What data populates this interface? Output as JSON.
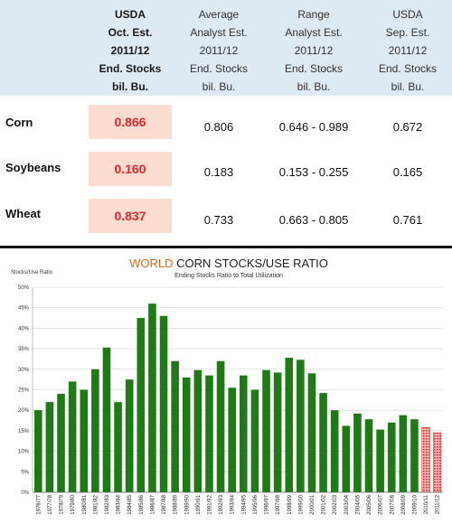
{
  "table": {
    "columns": [
      {
        "lines": [
          "USDA",
          "Oct. Est.",
          "2011/12",
          "End. Stocks",
          "bil. Bu."
        ],
        "bold": true
      },
      {
        "lines": [
          "Average",
          "Analyst Est.",
          "2011/12",
          "End. Stocks",
          "bil. Bu."
        ],
        "bold": false
      },
      {
        "lines": [
          "Range",
          "Analyst Est.",
          "2011/12",
          "End. Stocks",
          "bil. Bu."
        ],
        "bold": false
      },
      {
        "lines": [
          "USDA",
          "Sep. Est.",
          "2011/12",
          "End. Stocks",
          "bil. Bu."
        ],
        "bold": false
      }
    ],
    "rows": [
      {
        "label": "Corn",
        "oct": "0.866",
        "avg": "0.806",
        "range": "0.646 - 0.989",
        "sep": "0.672"
      },
      {
        "label": "Soybeans",
        "oct": "0.160",
        "avg": "0.183",
        "range": "0.153 - 0.255",
        "sep": "0.165"
      },
      {
        "label": "Wheat",
        "oct": "0.837",
        "avg": "0.733",
        "range": "0.663 - 0.805",
        "sep": "0.761"
      }
    ]
  },
  "chart_data": {
    "type": "bar",
    "title_part1": "WORLD",
    "title_part2": " CORN STOCKS/USE RATIO",
    "subtitle": "Ending Stocks Ratio to Total Utilization",
    "ylabel": "Stocks/Use Ratio",
    "ylim": [
      0,
      50
    ],
    "ytick_labels": [
      "0%",
      "5%",
      "10%",
      "15%",
      "20%",
      "25%",
      "30%",
      "35%",
      "40%",
      "45%",
      "50%"
    ],
    "categories": [
      "1976/77",
      "1977/78",
      "1978/79",
      "1979/80",
      "1980/81",
      "1981/82",
      "1982/83",
      "1983/84",
      "1984/85",
      "1985/86",
      "1986/87",
      "1987/88",
      "1988/89",
      "1989/90",
      "1990/91",
      "1991/92",
      "1992/93",
      "1993/94",
      "1994/95",
      "1995/96",
      "1996/97",
      "1997/98",
      "1998/99",
      "1999/00",
      "2000/01",
      "2001/02",
      "2002/03",
      "2003/04",
      "2004/05",
      "2005/06",
      "2006/07",
      "2007/08",
      "2008/09",
      "2009/10",
      "2010/11",
      "2011/12"
    ],
    "values": [
      20,
      22,
      24,
      27,
      25,
      30,
      35.3,
      22,
      27.5,
      42.5,
      46,
      43,
      32,
      28,
      29.8,
      28.5,
      32,
      25.5,
      28.5,
      25,
      29.8,
      29.2,
      32.8,
      32.3,
      29,
      24.2,
      20,
      16.2,
      19.2,
      17.8,
      15.3,
      17,
      18.8,
      17.8,
      15.8,
      14.5
    ],
    "series_colors": {
      "historical": "#1e7a14",
      "projected": "#e03030"
    },
    "projected_from_index": 34,
    "grid": true
  }
}
